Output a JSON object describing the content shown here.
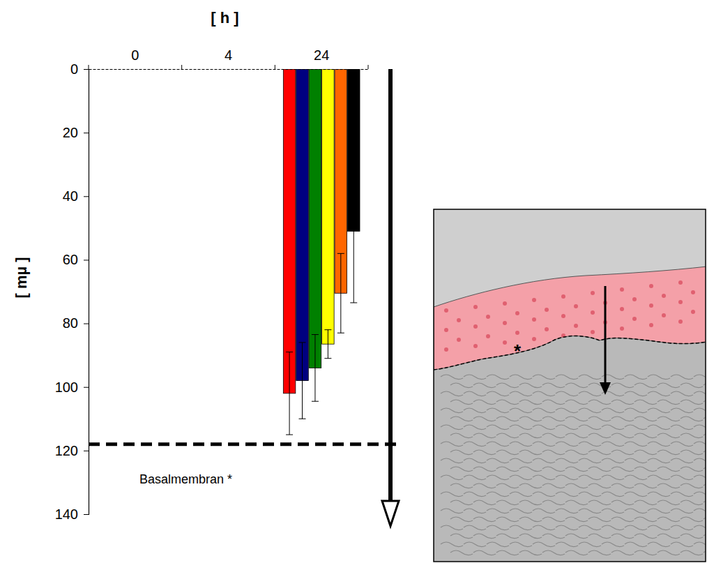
{
  "chart_data": {
    "type": "bar",
    "x_label": "[ h ]",
    "y_label": "[ mµ ]",
    "categories": [
      "0",
      "4",
      "24"
    ],
    "series": [
      {
        "color": "#ff0000",
        "values": [
          null,
          null,
          102
        ],
        "errors": [
          null,
          null,
          13
        ]
      },
      {
        "color": "#000080",
        "values": [
          null,
          null,
          98
        ],
        "errors": [
          null,
          null,
          12
        ]
      },
      {
        "color": "#008000",
        "values": [
          null,
          null,
          94
        ],
        "errors": [
          null,
          null,
          10.5
        ]
      },
      {
        "color": "#ffff00",
        "values": [
          null,
          null,
          86.5
        ],
        "errors": [
          null,
          null,
          4.5
        ]
      },
      {
        "color": "#ff6600",
        "values": [
          null,
          null,
          70.5
        ],
        "errors": [
          null,
          null,
          12.5
        ]
      },
      {
        "color": "#000000",
        "values": [
          null,
          null,
          51
        ],
        "errors": [
          null,
          null,
          22.5
        ]
      }
    ],
    "ylim": [
      0,
      140
    ],
    "yticks": [
      0,
      20,
      40,
      60,
      80,
      100,
      120,
      140
    ],
    "grid": false,
    "reference_line": {
      "value": 118,
      "label": "Basalmembran *"
    }
  },
  "image": {
    "asterisk": "*"
  }
}
